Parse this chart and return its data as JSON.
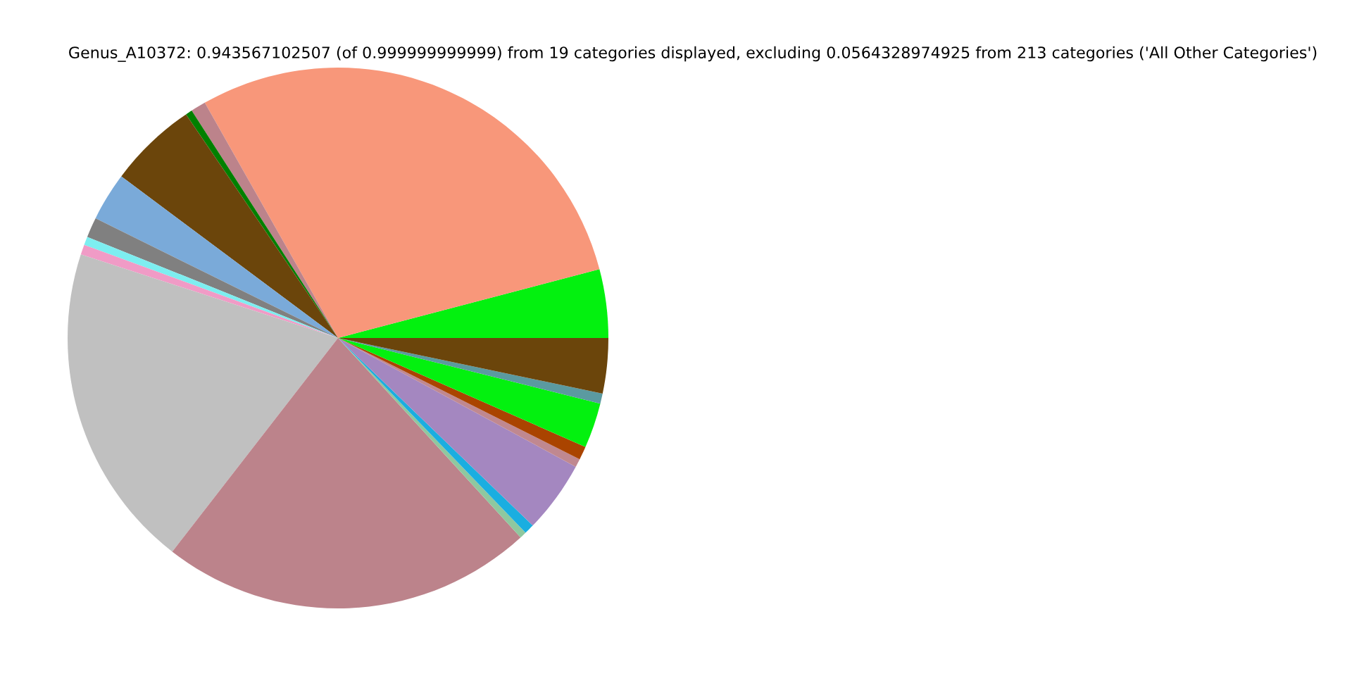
{
  "chart_data": {
    "type": "pie",
    "title": "Genus_A10372: 0.943567102507 (of 0.999999999999) from 19 categories displayed, excluding 0.0564328974925 from 213 categories ('All Other Categories')",
    "categories": [
      null,
      null,
      null,
      null,
      null,
      null,
      null,
      null,
      null,
      null,
      null,
      null,
      null,
      null,
      null,
      null,
      null,
      null,
      null
    ],
    "values": [
      4.1,
      29.1,
      0.9,
      0.4,
      5.3,
      2.9,
      1.2,
      0.5,
      0.6,
      19.5,
      22.3,
      0.4,
      0.6,
      4.3,
      0.5,
      0.8,
      2.7,
      0.6,
      3.3
    ],
    "colors": [
      "#03f10f",
      "#f8977a",
      "#bc838b",
      "#008000",
      "#6b450b",
      "#7aaad9",
      "#808080",
      "#7deef0",
      "#f09bc6",
      "#c0c0c0",
      "#bc838b",
      "#8fc89f",
      "#1aaee0",
      "#a487c0",
      "#c08890",
      "#aa4400",
      "#03f10f",
      "#5b9aa0",
      "#6b450b"
    ],
    "legend": false
  }
}
